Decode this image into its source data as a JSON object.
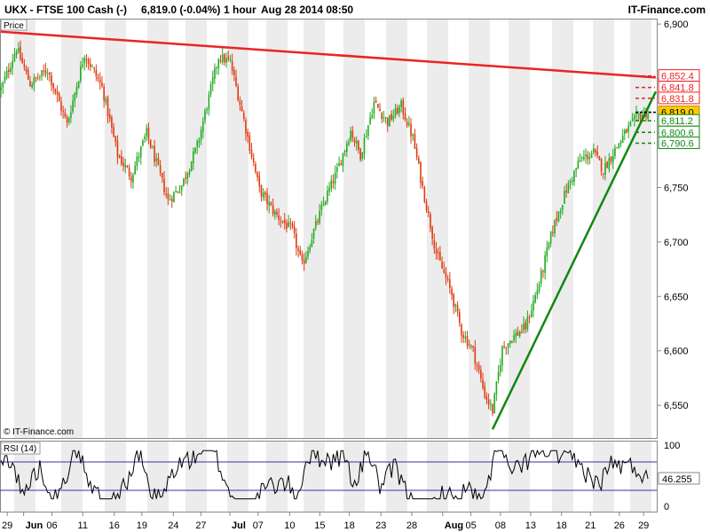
{
  "header": {
    "instrument": "UKX - FTSE 100 Cash (-)",
    "last": "6,819.0 (-0.04%)",
    "timeframe": "1 hour",
    "datetime": "Aug 28 2014 08:50",
    "brand": "IT-Finance.com"
  },
  "price_panel": {
    "label": "Price",
    "copyright": "© IT-Finance.com"
  },
  "rsi_panel": {
    "label": "RSI (14)",
    "current_value": "46.255"
  },
  "colors": {
    "up": "#22aa22",
    "down": "#e03a10",
    "resistance": "#ee2222",
    "support": "#118811",
    "current": "#ffcc00",
    "rsi_line": "#000000",
    "rsi_levels": "#3333aa"
  },
  "chart_data": [
    {
      "type": "candlestick",
      "title": "UKX - FTSE 100 Cash (-)",
      "ylim": [
        6520,
        6905
      ],
      "y_ticks": [
        {
          "value": 6900,
          "label": "6,900"
        },
        {
          "value": 6850,
          "label": "6,850"
        },
        {
          "value": 6800,
          "label": "6,800"
        },
        {
          "value": 6750,
          "label": "6,750"
        },
        {
          "value": 6700,
          "label": "6,700"
        },
        {
          "value": 6650,
          "label": "6,650"
        },
        {
          "value": 6600,
          "label": "6,600"
        },
        {
          "value": 6550,
          "label": "6,550"
        }
      ],
      "x_ticks": [
        "29",
        "Jun",
        "06",
        "11",
        "16",
        "19",
        "24",
        "27",
        "Jul",
        "07",
        "10",
        "15",
        "18",
        "23",
        "28",
        "Aug",
        "05",
        "08",
        "13",
        "18",
        "21",
        "26",
        "29"
      ],
      "price_levels": [
        {
          "label": "6,852.4",
          "value": 6852.4,
          "kind": "resistance"
        },
        {
          "label": "6,841.8",
          "value": 6841.8,
          "kind": "resistance"
        },
        {
          "label": "6,831.8",
          "value": 6831.8,
          "kind": "resistance"
        },
        {
          "label": "6,819.0",
          "value": 6819.0,
          "kind": "current"
        },
        {
          "label": "6,811.2",
          "value": 6811.2,
          "kind": "support"
        },
        {
          "label": "6,800.6",
          "value": 6800.6,
          "kind": "support"
        },
        {
          "label": "6,790.6",
          "value": 6790.6,
          "kind": "support"
        }
      ],
      "price_path": [
        [
          0,
          6840
        ],
        [
          8,
          6878
        ],
        [
          15,
          6845
        ],
        [
          24,
          6858
        ],
        [
          34,
          6808
        ],
        [
          43,
          6873
        ],
        [
          52,
          6842
        ],
        [
          60,
          6780
        ],
        [
          67,
          6760
        ],
        [
          75,
          6800
        ],
        [
          86,
          6738
        ],
        [
          93,
          6752
        ],
        [
          101,
          6788
        ],
        [
          112,
          6870
        ],
        [
          118,
          6865
        ],
        [
          125,
          6812
        ],
        [
          133,
          6748
        ],
        [
          141,
          6726
        ],
        [
          150,
          6710
        ],
        [
          155,
          6678
        ],
        [
          161,
          6710
        ],
        [
          167,
          6740
        ],
        [
          173,
          6765
        ],
        [
          180,
          6802
        ],
        [
          185,
          6780
        ],
        [
          192,
          6828
        ],
        [
          199,
          6810
        ],
        [
          206,
          6825
        ],
        [
          212,
          6795
        ],
        [
          217,
          6750
        ],
        [
          224,
          6690
        ],
        [
          232,
          6652
        ],
        [
          237,
          6618
        ],
        [
          243,
          6600
        ],
        [
          249,
          6560
        ],
        [
          253,
          6545
        ],
        [
          258,
          6602
        ],
        [
          263,
          6612
        ],
        [
          270,
          6622
        ],
        [
          277,
          6662
        ],
        [
          284,
          6712
        ],
        [
          291,
          6748
        ],
        [
          298,
          6775
        ],
        [
          305,
          6782
        ],
        [
          310,
          6766
        ],
        [
          315,
          6782
        ],
        [
          322,
          6802
        ],
        [
          328,
          6816
        ],
        [
          333,
          6819
        ]
      ],
      "trendlines": [
        {
          "name": "resistance",
          "from": [
            0,
            6893
          ],
          "to": [
            337,
            6851
          ]
        },
        {
          "name": "support",
          "from": [
            253,
            6528
          ],
          "to": [
            337,
            6838
          ]
        }
      ]
    },
    {
      "type": "line",
      "title": "RSI (14)",
      "ylim": [
        0,
        100
      ],
      "y_ticks": [
        {
          "value": 100,
          "label": "100"
        },
        {
          "value": 0,
          "label": "0"
        }
      ],
      "levels": [
        70,
        30
      ],
      "last_value": 46.255
    }
  ]
}
